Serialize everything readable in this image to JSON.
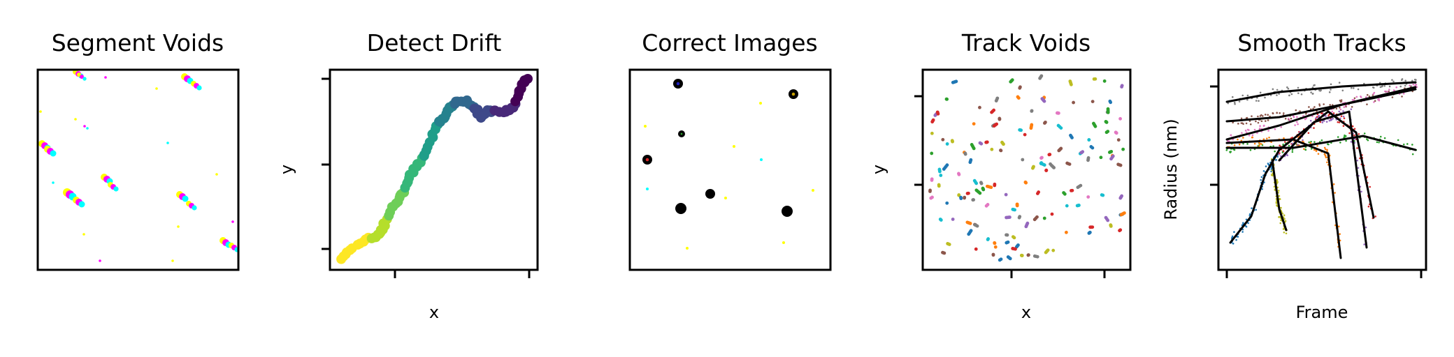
{
  "colors": {
    "yellow": "#ffff00",
    "magenta": "#ff00ff",
    "cyan": "#00ffff",
    "black": "#000000",
    "viridis": [
      "#fde725",
      "#b5de2b",
      "#6ece58",
      "#35b779",
      "#1f9e89",
      "#26828e",
      "#31688e",
      "#3e4989",
      "#482878",
      "#440154"
    ],
    "tab10": [
      "#1f77b4",
      "#ff7f0e",
      "#2ca02c",
      "#d62728",
      "#9467bd",
      "#8c564b",
      "#e377c2",
      "#7f7f7f",
      "#bcbd22",
      "#17becf"
    ]
  },
  "panels": [
    {
      "id": "segment",
      "title": "Segment Voids",
      "xlabel": "",
      "ylabel": ""
    },
    {
      "id": "drift",
      "title": "Detect Drift",
      "xlabel": "x",
      "ylabel": "y"
    },
    {
      "id": "correct",
      "title": "Correct Images",
      "xlabel": "",
      "ylabel": ""
    },
    {
      "id": "track",
      "title": "Track Voids",
      "xlabel": "x",
      "ylabel": "y"
    },
    {
      "id": "smooth",
      "title": "Smooth Tracks",
      "xlabel": "Frame",
      "ylabel": "Radius (nm)"
    }
  ]
}
